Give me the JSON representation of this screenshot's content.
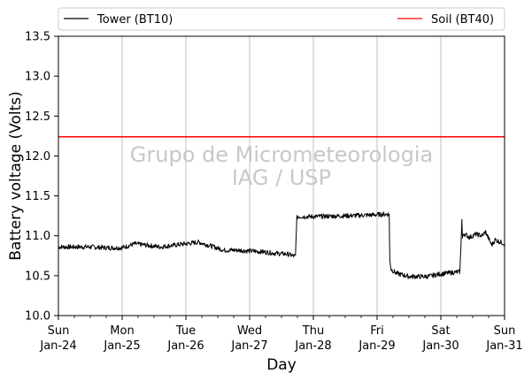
{
  "chart_data": {
    "type": "line",
    "xlabel": "Day",
    "ylabel": "Battery voltage (Volts)",
    "watermark": [
      "Grupo de Micrometeorologia",
      "IAG / USP"
    ],
    "legend": {
      "placement": "top, outside plot"
    },
    "grid": {
      "x": true,
      "y": false
    },
    "xlim": [
      0,
      7
    ],
    "ylim": [
      10.0,
      13.5
    ],
    "x_unit": "days since Sun Jan-24 00:00",
    "x_ticks": [
      {
        "value": 0,
        "day": "Sun",
        "date": "Jan-24"
      },
      {
        "value": 1,
        "day": "Mon",
        "date": "Jan-25"
      },
      {
        "value": 2,
        "day": "Tue",
        "date": "Jan-26"
      },
      {
        "value": 3,
        "day": "Wed",
        "date": "Jan-27"
      },
      {
        "value": 4,
        "day": "Thu",
        "date": "Jan-28"
      },
      {
        "value": 5,
        "day": "Fri",
        "date": "Jan-29"
      },
      {
        "value": 6,
        "day": "Sat",
        "date": "Jan-30"
      },
      {
        "value": 7,
        "day": "Sun",
        "date": "Jan-31"
      }
    ],
    "y_ticks": [
      "10.0",
      "10.5",
      "11.0",
      "11.5",
      "12.0",
      "12.5",
      "13.0",
      "13.5"
    ],
    "series": [
      {
        "name": "Tower (BT10)",
        "color": "#000000",
        "x": [
          0,
          0.25,
          0.5,
          0.75,
          1.0,
          1.2,
          1.4,
          1.6,
          1.8,
          2.0,
          2.2,
          2.4,
          2.6,
          2.8,
          3.0,
          3.2,
          3.4,
          3.6,
          3.72,
          3.73,
          3.74,
          3.76,
          4.0,
          4.5,
          4.9,
          5.1,
          5.19,
          5.2,
          5.22,
          5.3,
          5.5,
          5.8,
          5.98,
          6.3,
          6.33,
          6.34,
          6.36,
          6.45,
          6.55,
          6.65,
          6.7,
          6.8,
          6.85,
          7.0
        ],
        "y": [
          10.86,
          10.86,
          10.86,
          10.85,
          10.85,
          10.9,
          10.88,
          10.86,
          10.88,
          10.9,
          10.92,
          10.87,
          10.82,
          10.82,
          10.81,
          10.8,
          10.78,
          10.77,
          10.74,
          11.0,
          11.22,
          11.24,
          11.24,
          11.25,
          11.26,
          11.27,
          11.27,
          10.7,
          10.58,
          10.53,
          10.49,
          10.49,
          10.52,
          10.55,
          11.2,
          10.97,
          11.03,
          10.98,
          11.02,
          11.0,
          11.05,
          10.88,
          10.95,
          10.9
        ],
        "noise": 0.03
      },
      {
        "name": "Soil (BT40)",
        "color": "#ff0000",
        "x": [
          0,
          7
        ],
        "y": [
          12.24,
          12.24
        ]
      }
    ]
  }
}
